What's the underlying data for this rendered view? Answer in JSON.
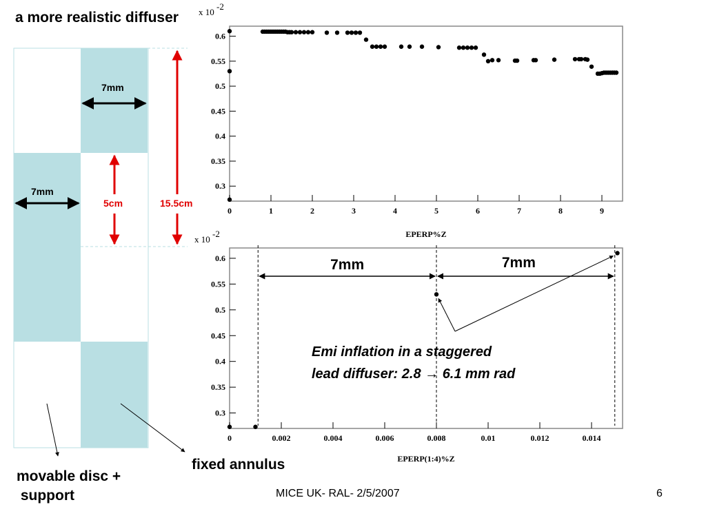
{
  "slide": {
    "title": "a more realistic diffuser",
    "footer": "MICE UK- RAL- 2/5/2007",
    "page_number": "6"
  },
  "diagram": {
    "dim_top": "7mm",
    "dim_left": "7mm",
    "dim_short": "5cm",
    "dim_long": "15.5cm",
    "label_movable": [
      "movable disc +",
      " support"
    ],
    "label_fixed": "fixed annulus",
    "colors": {
      "fill": "#b9dfe3",
      "dim_red": "#e00000"
    }
  },
  "annotations": {
    "gap1": "7mm",
    "gap2": "7mm",
    "text_line1": "Emi inflation in a staggered",
    "text_line2": "lead diffuser: 2.8 → 6.1 mm rad"
  },
  "chart_data": [
    {
      "type": "scatter",
      "xlabel": "EPERP%Z",
      "ylabel": "",
      "y_multiplier": "x 10",
      "y_multiplier_exp": "-2",
      "xlim": [
        0,
        9.5
      ],
      "ylim": [
        0.27,
        0.62
      ],
      "xticks": [
        0,
        1,
        2,
        3,
        4,
        5,
        6,
        7,
        8,
        9
      ],
      "yticks": [
        0.3,
        0.35,
        0.4,
        0.45,
        0.5,
        0.55,
        0.6
      ],
      "x": [
        0,
        0,
        0,
        0.8,
        0.85,
        0.9,
        0.95,
        1.0,
        1.05,
        1.1,
        1.15,
        1.2,
        1.25,
        1.3,
        1.35,
        1.4,
        1.45,
        1.5,
        1.6,
        1.7,
        1.8,
        1.9,
        2.0,
        2.35,
        2.6,
        2.85,
        2.95,
        3.05,
        3.15,
        3.3,
        3.45,
        3.55,
        3.65,
        3.75,
        4.15,
        4.35,
        4.65,
        5.05,
        5.55,
        5.65,
        5.75,
        5.85,
        5.95,
        6.15,
        6.25,
        6.35,
        6.5,
        6.9,
        6.95,
        7.35,
        7.4,
        7.85,
        8.35,
        8.45,
        8.5,
        8.6,
        8.65,
        8.75,
        8.9,
        8.95,
        9.0,
        9.05,
        9.1,
        9.15,
        9.2,
        9.25,
        9.3,
        9.35
      ],
      "y": [
        0.61,
        0.53,
        0.273,
        0.609,
        0.609,
        0.609,
        0.609,
        0.609,
        0.609,
        0.609,
        0.609,
        0.609,
        0.609,
        0.609,
        0.609,
        0.608,
        0.608,
        0.608,
        0.608,
        0.608,
        0.608,
        0.608,
        0.608,
        0.607,
        0.607,
        0.607,
        0.607,
        0.607,
        0.607,
        0.593,
        0.579,
        0.579,
        0.579,
        0.579,
        0.579,
        0.579,
        0.579,
        0.578,
        0.577,
        0.577,
        0.577,
        0.577,
        0.577,
        0.563,
        0.55,
        0.552,
        0.552,
        0.551,
        0.551,
        0.552,
        0.552,
        0.553,
        0.554,
        0.554,
        0.554,
        0.554,
        0.553,
        0.539,
        0.525,
        0.525,
        0.526,
        0.527,
        0.527,
        0.527,
        0.527,
        0.527,
        0.527,
        0.527
      ]
    },
    {
      "type": "scatter",
      "xlabel": "EPERP(1:4)%Z",
      "ylabel": "",
      "y_multiplier": "x 10",
      "y_multiplier_exp": "-2",
      "xlim": [
        0,
        0.0152
      ],
      "ylim": [
        0.27,
        0.62
      ],
      "xticks": [
        0,
        0.002,
        0.004,
        0.006,
        0.008,
        0.01,
        0.012,
        0.014
      ],
      "xtick_labels": [
        "0",
        "0.002",
        "0.004",
        "0.006",
        "0.008",
        "0.01",
        "0.012",
        "0.014"
      ],
      "yticks": [
        0.3,
        0.35,
        0.4,
        0.45,
        0.5,
        0.55,
        0.6
      ],
      "x": [
        0,
        0.001,
        0.008,
        0.015
      ],
      "y": [
        0.273,
        0.273,
        0.53,
        0.61
      ],
      "dashed_x": [
        0.0011,
        0.008,
        0.0149
      ]
    }
  ]
}
